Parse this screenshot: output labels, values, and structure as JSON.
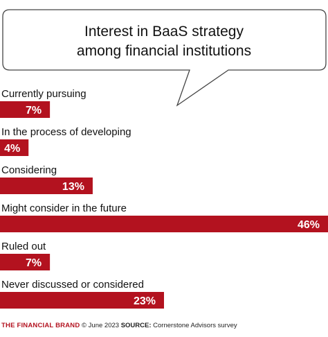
{
  "chart_data": {
    "type": "bar",
    "orientation": "horizontal",
    "title_lines": [
      "Interest in BaaS strategy",
      "among financial institutions"
    ],
    "categories": [
      "Currently pursuing",
      "In the process of developing",
      "Considering",
      "Might consider in the future",
      "Ruled out",
      "Never discussed or considered"
    ],
    "values": [
      7,
      4,
      13,
      46,
      7,
      23
    ],
    "value_labels": [
      "7%",
      "4%",
      "13%",
      "46%",
      "7%",
      "23%"
    ],
    "xlim": [
      0,
      46
    ],
    "grid": false,
    "legend": "none"
  },
  "colors": {
    "bar": "#b3121f",
    "bubble_stroke": "#444444",
    "brand": "#b3121f"
  },
  "footer": {
    "brand": "THE FINANCIAL BRAND",
    "date": "© June 2023",
    "source_label": "SOURCE:",
    "source_text": "Cornerstone Advisors survey"
  }
}
